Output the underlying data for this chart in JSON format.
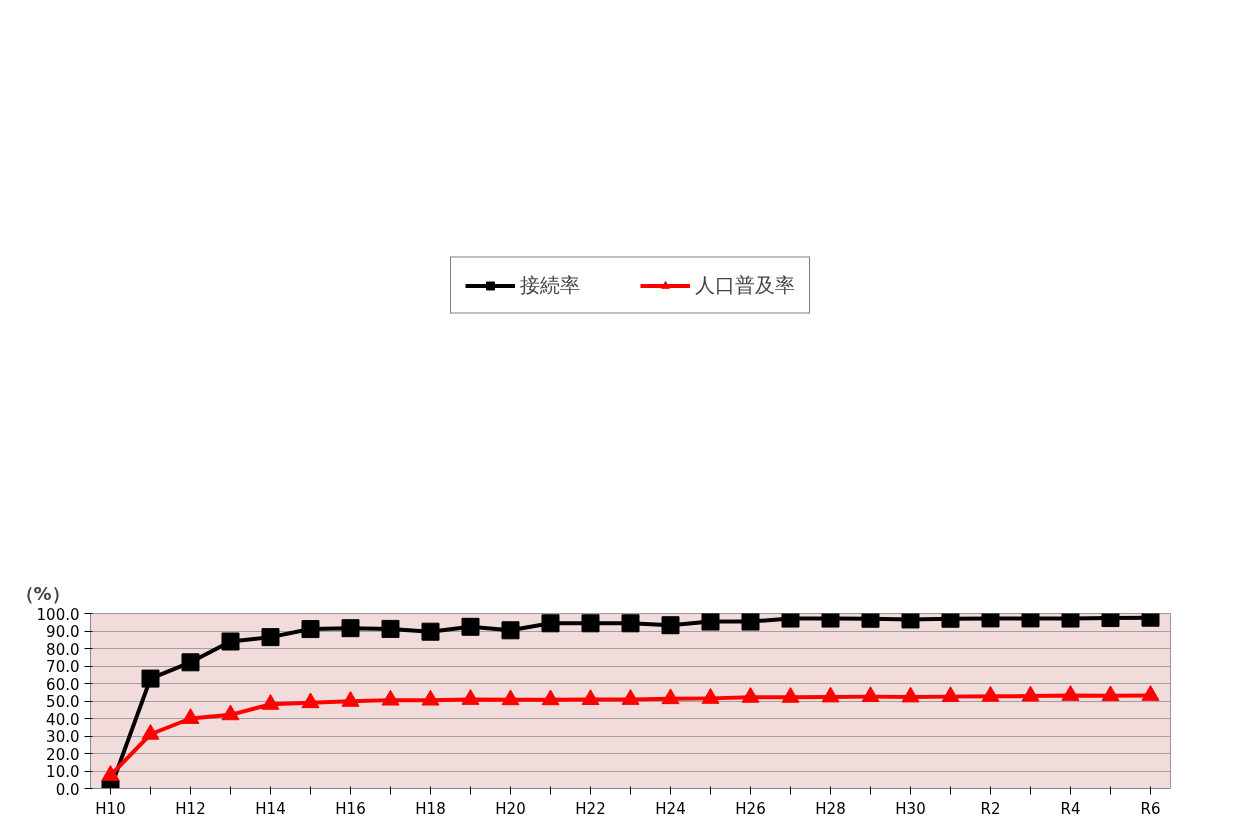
{
  "chart_data": {
    "type": "line",
    "ylabel": "（%）",
    "categories": [
      "H10",
      null,
      "H12",
      null,
      "H14",
      null,
      "H16",
      null,
      "H18",
      null,
      "H20",
      null,
      "H22",
      null,
      "H24",
      null,
      "H26",
      null,
      "H28",
      null,
      "H30",
      null,
      "R2",
      null,
      "R4",
      null,
      "R6"
    ],
    "series": [
      {
        "name": "接続率",
        "color": "#000000",
        "marker": "square",
        "values": [
          0.0,
          62.8,
          72.1,
          84.0,
          86.5,
          91.1,
          91.6,
          91.2,
          89.6,
          92.4,
          90.4,
          94.4,
          94.4,
          94.4,
          93.3,
          95.4,
          95.4,
          97.1,
          97.1,
          97.0,
          96.6,
          97.0,
          97.2,
          97.2,
          97.1,
          97.4,
          97.6
        ]
      },
      {
        "name": "人口普及率",
        "color": "#ff0000",
        "marker": "triangle",
        "values": [
          7.5,
          31.0,
          40.0,
          42.1,
          48.1,
          49.0,
          49.8,
          50.5,
          50.5,
          50.9,
          50.7,
          50.7,
          50.8,
          50.9,
          51.3,
          51.5,
          52.1,
          52.1,
          52.3,
          52.5,
          52.3,
          52.5,
          52.7,
          52.8,
          53.2,
          53.0,
          53.2
        ]
      }
    ],
    "ylim": [
      0,
      100
    ],
    "yticks": [
      {
        "value": 0,
        "label": "0.0"
      },
      {
        "value": 10,
        "label": "10.0"
      },
      {
        "value": 20,
        "label": "20.0"
      },
      {
        "value": 30,
        "label": "30.0"
      },
      {
        "value": 40,
        "label": "40.0"
      },
      {
        "value": 50,
        "label": "50.0"
      },
      {
        "value": 60,
        "label": "60.0"
      },
      {
        "value": 70,
        "label": "70.0"
      },
      {
        "value": 80,
        "label": "80.0"
      },
      {
        "value": 90,
        "label": "90.0"
      },
      {
        "value": 100,
        "label": "100.0"
      }
    ],
    "grid": "y",
    "legend": "top",
    "line_style": "solid"
  }
}
